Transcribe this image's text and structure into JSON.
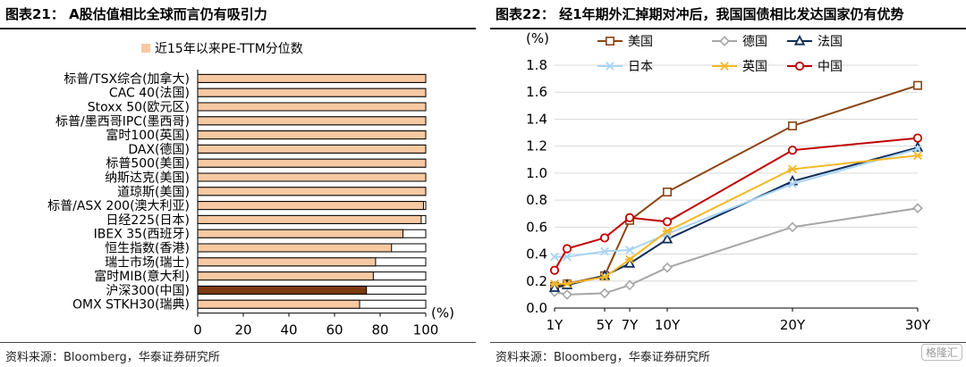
{
  "left": {
    "title": "图表21： A股估值相比全球而言仍有吸引力",
    "source": "资料来源：Bloomberg，华泰证券研究所",
    "chart_data": {
      "type": "bar",
      "orientation": "horizontal",
      "categories": [
        "标普/TSX综合(加拿大)",
        "CAC 40(法国)",
        "Stoxx 50(欧元区)",
        "标普/墨西哥IPC(墨西哥)",
        "富时100(英国)",
        "DAX(德国)",
        "标普500(美国)",
        "纳斯达克(美国)",
        "道琼斯(美国)",
        "标普/ASX 200(澳大利亚)",
        "日经225(日本)",
        "IBEX 35(西班牙)",
        "恒生指数(香港)",
        "瑞士市场(瑞士)",
        "富时MIB(意大利)",
        "沪深300(中国)",
        "OMX STKH30(瑞典)"
      ],
      "series": [
        {
          "name": "近15年以来PE-TTM分位数",
          "values": [
            100,
            100,
            100,
            100,
            100,
            100,
            100,
            100,
            100,
            99,
            98,
            90,
            85,
            78,
            77,
            74,
            71
          ]
        }
      ],
      "highlight_index": 15,
      "xlim": [
        0,
        100
      ],
      "xticks": [
        "0",
        "20",
        "40",
        "60",
        "80",
        "100"
      ],
      "xunit": "(%)",
      "legend_position": "top",
      "colors": {
        "bar": "#F7C9A2",
        "highlight": "#7B3A10",
        "remainder": "#ffffff",
        "border": "#000000"
      }
    }
  },
  "right": {
    "title": "图表22： 经1年期外汇掉期对冲后，我国国债相比发达国家仍有优势",
    "source": "资料来源：Bloomberg，华泰证券研究所",
    "watermark": "格隆汇",
    "chart_data": {
      "type": "line",
      "x": [
        1,
        2,
        5,
        7,
        10,
        20,
        30
      ],
      "xticks": [
        {
          "v": 1,
          "label": "1Y"
        },
        {
          "v": 5,
          "label": "5Y"
        },
        {
          "v": 7,
          "label": "7Y"
        },
        {
          "v": 10,
          "label": "10Y"
        },
        {
          "v": 20,
          "label": "20Y"
        },
        {
          "v": 30,
          "label": "30Y"
        }
      ],
      "yunit": "(%)",
      "ylim": [
        0,
        1.8
      ],
      "yticks": [
        "0.0",
        "0.2",
        "0.4",
        "0.6",
        "0.8",
        "1.0",
        "1.2",
        "1.4",
        "1.6",
        "1.8"
      ],
      "legend_position": "top",
      "series": [
        {
          "name": "美国",
          "color": "#8B4513",
          "marker": "square",
          "values": [
            0.16,
            0.18,
            0.24,
            0.65,
            0.86,
            1.35,
            1.65
          ]
        },
        {
          "name": "德国",
          "color": "#A6A6A6",
          "marker": "diamond",
          "values": [
            0.12,
            0.1,
            0.11,
            0.17,
            0.3,
            0.6,
            0.74
          ]
        },
        {
          "name": "法国",
          "color": "#0F2D5A",
          "marker": "triangle",
          "values": [
            0.15,
            0.17,
            0.24,
            0.33,
            0.51,
            0.94,
            1.19
          ]
        },
        {
          "name": "日本",
          "color": "#A8D4F5",
          "marker": "x",
          "values": [
            0.38,
            0.38,
            0.42,
            0.43,
            0.55,
            0.92,
            1.18
          ]
        },
        {
          "name": "英国",
          "color": "#F6B826",
          "marker": "star",
          "values": [
            0.18,
            0.18,
            0.23,
            0.36,
            0.57,
            1.03,
            1.13
          ]
        },
        {
          "name": "中国",
          "color": "#C00000",
          "marker": "circle",
          "values": [
            0.28,
            0.44,
            0.52,
            0.67,
            0.64,
            1.17,
            1.26
          ]
        }
      ]
    }
  }
}
